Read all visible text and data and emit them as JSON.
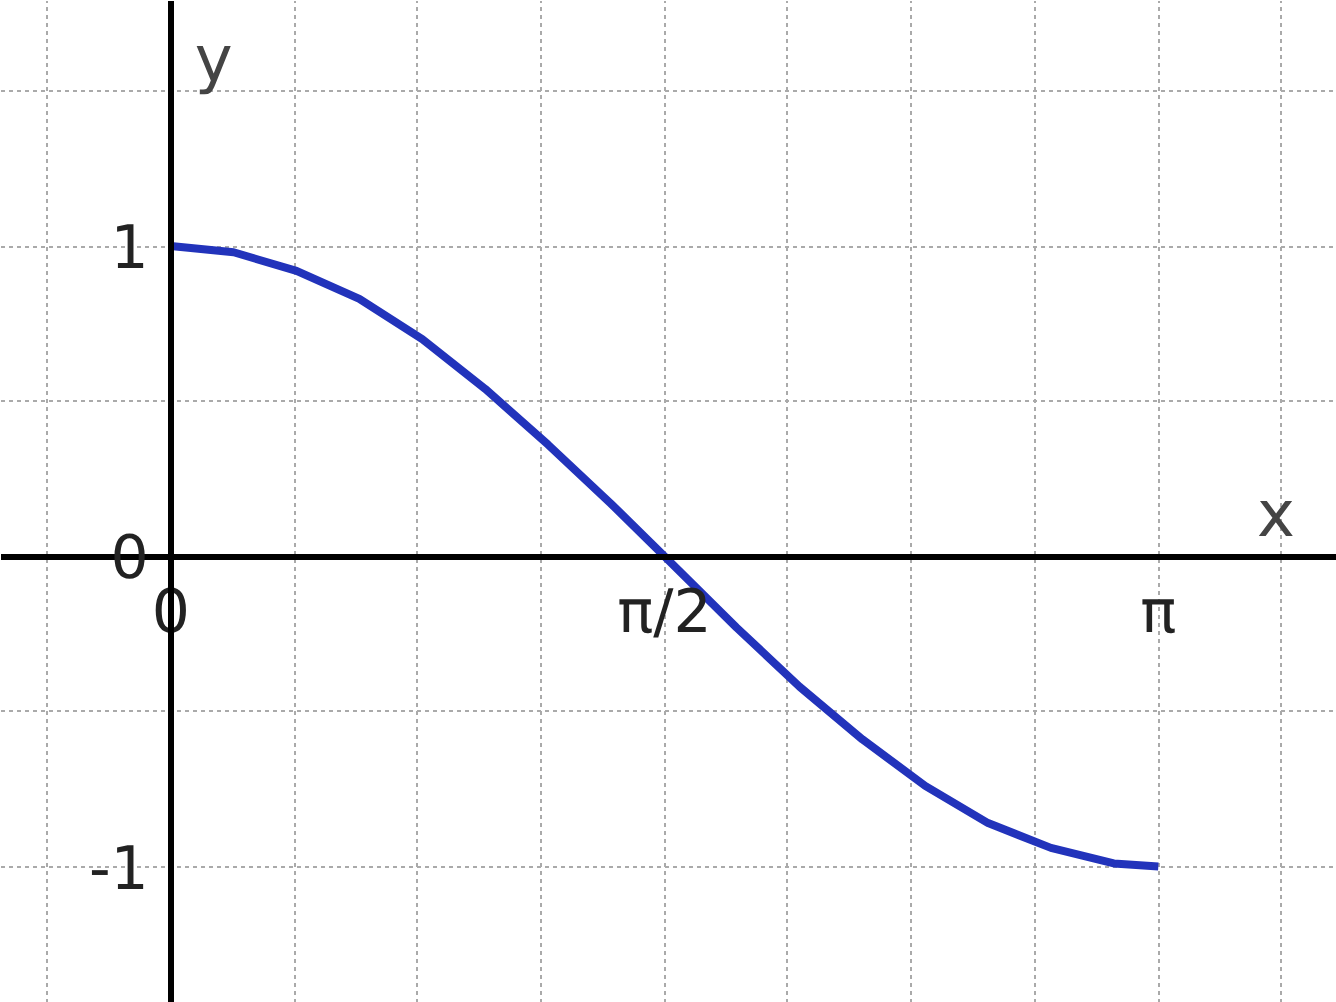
{
  "chart_data": {
    "type": "line",
    "xlabel": "x",
    "ylabel": "y",
    "x": [
      0,
      0.2,
      0.4,
      0.6,
      0.8,
      1.0,
      1.2,
      1.4,
      1.5708,
      1.8,
      2.0,
      2.2,
      2.4,
      2.6,
      2.8,
      3.0,
      3.1416
    ],
    "series": [
      {
        "color": "#2233bb",
        "values": [
          1,
          0.98,
          0.92,
          0.83,
          0.7,
          0.54,
          0.36,
          0.17,
          0,
          -0.23,
          -0.42,
          -0.59,
          -0.74,
          -0.86,
          -0.94,
          -0.99,
          -1
        ]
      }
    ],
    "xlim": [
      -0.54,
      3.71
    ],
    "ylim": [
      -1.44,
      1.79
    ],
    "xticks": [
      {
        "value": -0.3927,
        "label": null
      },
      {
        "value": 0,
        "label": "0"
      },
      {
        "value": 0.3927,
        "label": null
      },
      {
        "value": 0.7854,
        "label": null
      },
      {
        "value": 1.1781,
        "label": null
      },
      {
        "value": 1.5708,
        "label": "π/2"
      },
      {
        "value": 1.9635,
        "label": null
      },
      {
        "value": 2.3562,
        "label": null
      },
      {
        "value": 2.7489,
        "label": null
      },
      {
        "value": 3.1416,
        "label": "π"
      },
      {
        "value": 3.5343,
        "label": null
      }
    ],
    "yticks": [
      {
        "value": -1,
        "label": "-1"
      },
      {
        "value": -0.5,
        "label": null
      },
      {
        "value": 0,
        "label": "0"
      },
      {
        "value": 0.5,
        "label": null
      },
      {
        "value": 1,
        "label": "1"
      },
      {
        "value": 1.5,
        "label": null
      }
    ],
    "grid": true,
    "line_style": "solid",
    "marker": "none"
  }
}
